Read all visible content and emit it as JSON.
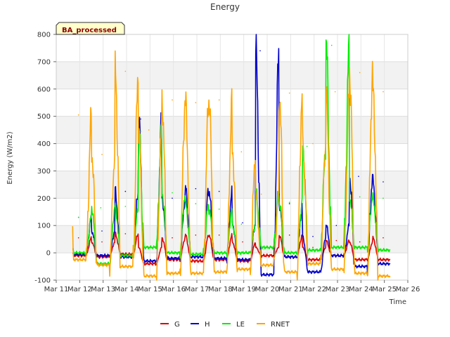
{
  "chart_data": {
    "type": "line",
    "title": "Energy",
    "xlabel": "Time",
    "ylabel": "Energy (W/m2)",
    "badge": "BA_processed",
    "ylim": [
      -100,
      800
    ],
    "yticks": [
      -100,
      0,
      100,
      200,
      300,
      400,
      500,
      600,
      700,
      800
    ],
    "xlim": [
      11,
      26
    ],
    "xticks": [
      {
        "day": 11,
        "label": "Mar 11"
      },
      {
        "day": 12,
        "label": "Mar 12"
      },
      {
        "day": 13,
        "label": "Mar 13"
      },
      {
        "day": 14,
        "label": "Mar 14"
      },
      {
        "day": 15,
        "label": "Mar 15"
      },
      {
        "day": 16,
        "label": "Mar 16"
      },
      {
        "day": 17,
        "label": "Mar 17"
      },
      {
        "day": 18,
        "label": "Mar 18"
      },
      {
        "day": 19,
        "label": "Mar 19"
      },
      {
        "day": 20,
        "label": "Mar 20"
      },
      {
        "day": 21,
        "label": "Mar 21"
      },
      {
        "day": 22,
        "label": "Mar 22"
      },
      {
        "day": 23,
        "label": "Mar 23"
      },
      {
        "day": 24,
        "label": "Mar 24"
      },
      {
        "day": 25,
        "label": "Mar 25"
      },
      {
        "day": 26,
        "label": "Mar 26"
      }
    ],
    "data_start_day": 11.7,
    "data_end_day": 25.25,
    "series": [
      {
        "name": "G",
        "color": "#dd0000",
        "daily_peak_x": [
          11.95,
          12.95,
          13.95,
          14.95,
          15.95,
          16.95,
          17.95,
          18.95,
          19.95,
          20.95,
          21.95,
          22.95,
          23.95,
          24.95
        ],
        "daily_peak_y": [
          55,
          40,
          70,
          20,
          55,
          65,
          65,
          40,
          20,
          65,
          20,
          45,
          40,
          55
        ],
        "night_y": [
          -10,
          -15,
          -5,
          -40,
          -25,
          -30,
          -25,
          -30,
          -10,
          -15,
          -25,
          -10,
          -25,
          -25
        ]
      },
      {
        "name": "H",
        "color": "#0000cc",
        "daily_peak_x": [
          11.95,
          12.95,
          13.95,
          14.6,
          15.95,
          16.95,
          17.95,
          18.95,
          19.7,
          20.95,
          21.95,
          22.95,
          23.9,
          24.95
        ],
        "daily_peak_y": [
          130,
          80,
          225,
          490,
          200,
          235,
          225,
          110,
          740,
          180,
          60,
          100,
          280,
          260
        ],
        "night_y": [
          -5,
          -10,
          -15,
          -30,
          -20,
          -15,
          -20,
          -25,
          -80,
          -15,
          -70,
          -10,
          -50,
          -40
        ]
      },
      {
        "name": "LE",
        "color": "#00ee00",
        "daily_peak_x": [
          11.95,
          12.9,
          13.95,
          14.6,
          15.95,
          16.95,
          17.95,
          18.9,
          19.55,
          20.95,
          21.7,
          22.75,
          23.95,
          24.95
        ],
        "daily_peak_y": [
          130,
          165,
          170,
          445,
          220,
          180,
          160,
          105,
          225,
          185,
          390,
          760,
          205,
          200
        ],
        "night_y": [
          0,
          -40,
          -10,
          20,
          0,
          -5,
          0,
          0,
          20,
          0,
          10,
          20,
          20,
          10
        ]
      },
      {
        "name": "RNET",
        "color": "#ffa500",
        "daily_peak_x": [
          11.95,
          12.95,
          13.95,
          14.95,
          15.95,
          16.95,
          17.95,
          18.9,
          19.75,
          20.95,
          21.95,
          22.9,
          23.95,
          24.95
        ],
        "daily_peak_y": [
          505,
          360,
          665,
          450,
          560,
          550,
          560,
          370,
          215,
          585,
          400,
          590,
          660,
          590
        ],
        "night_y": [
          -25,
          -45,
          -50,
          -85,
          -75,
          -75,
          -70,
          -60,
          -45,
          -70,
          -40,
          -60,
          -75,
          -85
        ]
      }
    ],
    "legend": [
      "G",
      "H",
      "LE",
      "RNET"
    ],
    "legend_position": "bottom-center",
    "grid": true
  }
}
